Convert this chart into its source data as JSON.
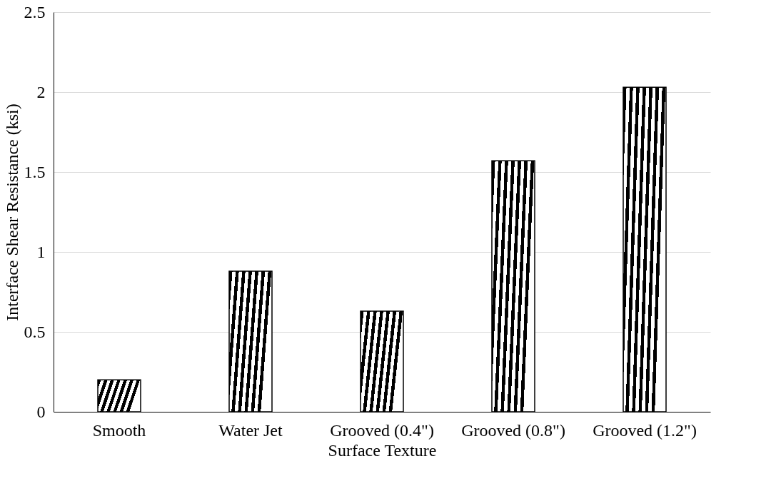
{
  "chart_data": {
    "type": "bar",
    "xlabel": "Surface Texture",
    "ylabel": "Interface Shear Resistance (ksi)",
    "categories": [
      "Smooth",
      "Water Jet",
      "Grooved (0.4\")",
      "Grooved (0.8\")",
      "Grooved (1.2\")"
    ],
    "values": [
      0.2,
      0.88,
      0.63,
      1.57,
      2.03
    ],
    "color": "#000000",
    "ylim": [
      0,
      2.5
    ],
    "yticks": [
      0,
      0.5,
      1,
      1.5,
      2,
      2.5
    ],
    "grid": "y"
  }
}
